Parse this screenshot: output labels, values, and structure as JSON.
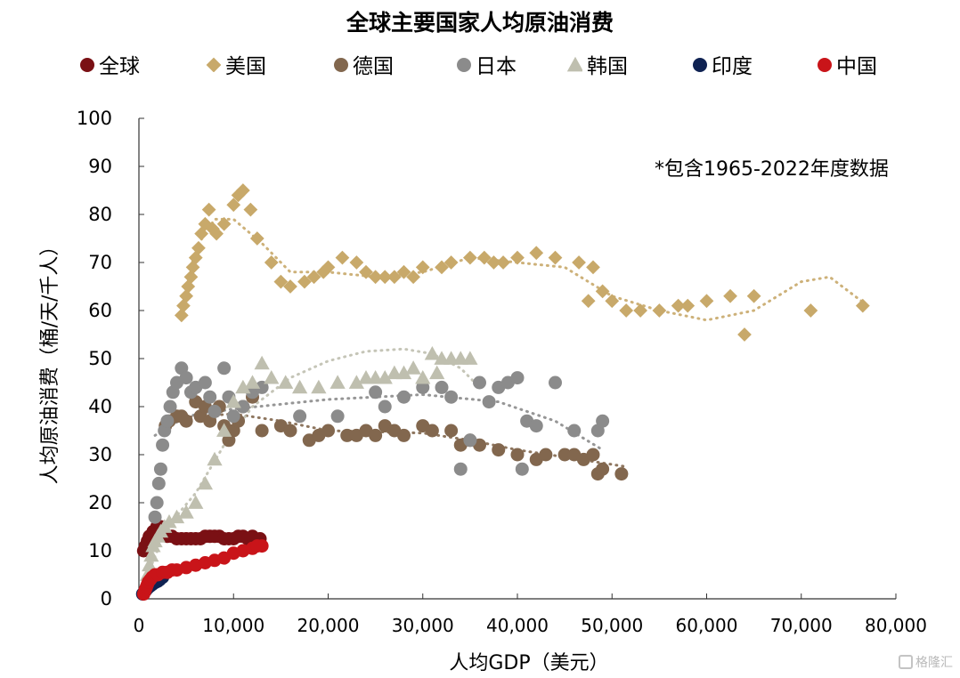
{
  "chart_data": {
    "type": "scatter",
    "title": "全球主要国家人均原油消费",
    "note": "*包含1965-2022年度数据",
    "xlabel": "人均GDP（美元）",
    "ylabel": "人均原油消费（桶/天/千人）",
    "xlim": [
      0,
      80000
    ],
    "ylim": [
      0,
      100
    ],
    "x_ticks": [
      "0",
      "10,000",
      "20,000",
      "30,000",
      "40,000",
      "50,000",
      "60,000",
      "70,000",
      "80,000"
    ],
    "y_ticks": [
      "0",
      "10",
      "20",
      "30",
      "40",
      "50",
      "60",
      "70",
      "80",
      "90",
      "100"
    ],
    "grid": false,
    "legend_position": "top",
    "series": [
      {
        "name": "全球",
        "color": "#7a1014",
        "marker": "circle",
        "points": [
          [
            500,
            10
          ],
          [
            700,
            11
          ],
          [
            900,
            12
          ],
          [
            1100,
            13
          ],
          [
            1300,
            13
          ],
          [
            1500,
            14
          ],
          [
            1700,
            14
          ],
          [
            1900,
            15
          ],
          [
            2100,
            14
          ],
          [
            2300,
            15
          ],
          [
            2600,
            14
          ],
          [
            3000,
            13
          ],
          [
            3500,
            13
          ],
          [
            4000,
            12.5
          ],
          [
            4500,
            12.5
          ],
          [
            5000,
            12.5
          ],
          [
            5500,
            12.5
          ],
          [
            6000,
            12.5
          ],
          [
            6500,
            12.5
          ],
          [
            7000,
            13
          ],
          [
            7500,
            13
          ],
          [
            8000,
            13
          ],
          [
            8500,
            13
          ],
          [
            9000,
            12.5
          ],
          [
            9500,
            12.5
          ],
          [
            10000,
            12.5
          ],
          [
            10500,
            13
          ],
          [
            11000,
            13
          ],
          [
            11500,
            12.5
          ],
          [
            12000,
            13
          ],
          [
            12800,
            12.5
          ]
        ],
        "trend": [
          [
            500,
            10
          ],
          [
            2000,
            13
          ],
          [
            5000,
            12.5
          ],
          [
            12800,
            12.5
          ]
        ]
      },
      {
        "name": "美国",
        "color": "#c8a96a",
        "marker": "diamond",
        "points": [
          [
            4500,
            59
          ],
          [
            4700,
            61
          ],
          [
            5000,
            63
          ],
          [
            5200,
            65
          ],
          [
            5500,
            67
          ],
          [
            5700,
            69
          ],
          [
            6000,
            71
          ],
          [
            6300,
            73
          ],
          [
            6600,
            76
          ],
          [
            7000,
            78
          ],
          [
            7400,
            81
          ],
          [
            7800,
            77
          ],
          [
            8200,
            76
          ],
          [
            9000,
            78
          ],
          [
            10000,
            82
          ],
          [
            10500,
            84
          ],
          [
            11000,
            85
          ],
          [
            11800,
            81
          ],
          [
            12500,
            75
          ],
          [
            14000,
            70
          ],
          [
            15000,
            66
          ],
          [
            16000,
            65
          ],
          [
            17500,
            66
          ],
          [
            18500,
            67
          ],
          [
            19500,
            68
          ],
          [
            20000,
            69
          ],
          [
            21500,
            71
          ],
          [
            23000,
            70
          ],
          [
            24000,
            68
          ],
          [
            25000,
            67
          ],
          [
            26000,
            67
          ],
          [
            27000,
            67
          ],
          [
            28000,
            68
          ],
          [
            29000,
            67
          ],
          [
            30000,
            69
          ],
          [
            32000,
            69
          ],
          [
            33000,
            70
          ],
          [
            35000,
            71
          ],
          [
            36500,
            71
          ],
          [
            37500,
            70
          ],
          [
            38500,
            70
          ],
          [
            40000,
            71
          ],
          [
            42000,
            72
          ],
          [
            44000,
            71
          ],
          [
            46500,
            70
          ],
          [
            47500,
            62
          ],
          [
            48000,
            69
          ],
          [
            49000,
            64
          ],
          [
            50000,
            62
          ],
          [
            51500,
            60
          ],
          [
            53000,
            60
          ],
          [
            55000,
            60
          ],
          [
            57000,
            61
          ],
          [
            58000,
            61
          ],
          [
            60000,
            62
          ],
          [
            62500,
            63
          ],
          [
            64000,
            55
          ],
          [
            65000,
            63
          ],
          [
            71000,
            60
          ],
          [
            76500,
            61
          ]
        ],
        "trend": [
          [
            4500,
            60
          ],
          [
            6000,
            73
          ],
          [
            8000,
            79
          ],
          [
            10000,
            79
          ],
          [
            13000,
            74
          ],
          [
            16000,
            68
          ],
          [
            20000,
            68
          ],
          [
            25000,
            67
          ],
          [
            30000,
            68
          ],
          [
            35000,
            71
          ],
          [
            40000,
            70
          ],
          [
            45000,
            69
          ],
          [
            50000,
            63
          ],
          [
            55000,
            60
          ],
          [
            60000,
            58
          ],
          [
            65000,
            60
          ],
          [
            70000,
            66
          ],
          [
            73000,
            67
          ],
          [
            77000,
            61
          ]
        ]
      },
      {
        "name": "德国",
        "color": "#82674e",
        "marker": "circle",
        "points": [
          [
            2800,
            36
          ],
          [
            3200,
            37
          ],
          [
            4000,
            38
          ],
          [
            4500,
            38
          ],
          [
            5000,
            37
          ],
          [
            6000,
            41
          ],
          [
            6500,
            38
          ],
          [
            7000,
            40
          ],
          [
            7500,
            37
          ],
          [
            8000,
            39
          ],
          [
            8500,
            40
          ],
          [
            9000,
            36
          ],
          [
            9500,
            33
          ],
          [
            10000,
            35
          ],
          [
            10500,
            37
          ],
          [
            11000,
            40
          ],
          [
            12000,
            42
          ],
          [
            13000,
            35
          ],
          [
            15000,
            36
          ],
          [
            16000,
            35
          ],
          [
            18000,
            33
          ],
          [
            19000,
            34
          ],
          [
            20000,
            35
          ],
          [
            22000,
            34
          ],
          [
            23000,
            34
          ],
          [
            24000,
            35
          ],
          [
            25000,
            34
          ],
          [
            26000,
            36
          ],
          [
            27000,
            35
          ],
          [
            28000,
            34
          ],
          [
            30000,
            36
          ],
          [
            31000,
            35
          ],
          [
            33000,
            35
          ],
          [
            34000,
            32
          ],
          [
            35000,
            33
          ],
          [
            36000,
            32
          ],
          [
            38000,
            31
          ],
          [
            40000,
            30
          ],
          [
            42000,
            29
          ],
          [
            43000,
            30
          ],
          [
            45000,
            30
          ],
          [
            46000,
            30
          ],
          [
            47000,
            29
          ],
          [
            48000,
            30
          ],
          [
            48500,
            26
          ],
          [
            49000,
            27
          ],
          [
            51000,
            26
          ]
        ],
        "trend": [
          [
            2800,
            37.5
          ],
          [
            10000,
            38.5
          ],
          [
            15000,
            37
          ],
          [
            20000,
            35
          ],
          [
            30000,
            34.5
          ],
          [
            35000,
            33
          ],
          [
            40000,
            31
          ],
          [
            45000,
            29.5
          ],
          [
            51500,
            27.5
          ]
        ]
      },
      {
        "name": "日本",
        "color": "#8b8b8b",
        "marker": "circle",
        "points": [
          [
            1700,
            17
          ],
          [
            1900,
            20
          ],
          [
            2100,
            24
          ],
          [
            2300,
            27
          ],
          [
            2500,
            32
          ],
          [
            2700,
            35
          ],
          [
            3000,
            37
          ],
          [
            3300,
            40
          ],
          [
            3600,
            43
          ],
          [
            4000,
            45
          ],
          [
            4500,
            48
          ],
          [
            5000,
            46
          ],
          [
            5500,
            43
          ],
          [
            6000,
            44
          ],
          [
            7000,
            45
          ],
          [
            7500,
            42
          ],
          [
            8000,
            39
          ],
          [
            9000,
            48
          ],
          [
            9500,
            42
          ],
          [
            10000,
            38
          ],
          [
            11000,
            40
          ],
          [
            12000,
            43
          ],
          [
            13000,
            44
          ],
          [
            17000,
            38
          ],
          [
            21000,
            38
          ],
          [
            25000,
            43
          ],
          [
            26000,
            40
          ],
          [
            28000,
            42
          ],
          [
            30000,
            44
          ],
          [
            32000,
            44
          ],
          [
            33000,
            42
          ],
          [
            34000,
            27
          ],
          [
            35000,
            33
          ],
          [
            36000,
            45
          ],
          [
            37000,
            41
          ],
          [
            38000,
            44
          ],
          [
            39000,
            45
          ],
          [
            40000,
            46
          ],
          [
            41000,
            37
          ],
          [
            42000,
            36
          ],
          [
            44000,
            45
          ],
          [
            46000,
            35
          ],
          [
            48500,
            35
          ],
          [
            49000,
            37
          ],
          [
            40500,
            27
          ]
        ],
        "trend": [
          [
            1700,
            34
          ],
          [
            5000,
            38
          ],
          [
            10000,
            39.5
          ],
          [
            20000,
            41.5
          ],
          [
            30000,
            42.5
          ],
          [
            38000,
            41
          ],
          [
            44000,
            37
          ],
          [
            49000,
            31
          ]
        ]
      },
      {
        "name": "韩国",
        "color": "#bfbfaf",
        "marker": "triangle",
        "points": [
          [
            900,
            5
          ],
          [
            1100,
            7
          ],
          [
            1300,
            9
          ],
          [
            1500,
            11
          ],
          [
            1700,
            12
          ],
          [
            2000,
            13
          ],
          [
            2300,
            14
          ],
          [
            2700,
            15
          ],
          [
            3200,
            16
          ],
          [
            4000,
            17
          ],
          [
            5000,
            18
          ],
          [
            6000,
            20
          ],
          [
            7000,
            24
          ],
          [
            8000,
            29
          ],
          [
            9000,
            35
          ],
          [
            10000,
            41
          ],
          [
            11000,
            44
          ],
          [
            12000,
            45
          ],
          [
            13000,
            49
          ],
          [
            14000,
            46
          ],
          [
            15500,
            45
          ],
          [
            17000,
            44
          ],
          [
            19000,
            44
          ],
          [
            21000,
            45
          ],
          [
            23000,
            45
          ],
          [
            24000,
            46
          ],
          [
            25000,
            46
          ],
          [
            26000,
            46
          ],
          [
            27000,
            47
          ],
          [
            28000,
            47
          ],
          [
            29000,
            48
          ],
          [
            30000,
            46
          ],
          [
            31000,
            51
          ],
          [
            32000,
            50
          ],
          [
            33000,
            50
          ],
          [
            34000,
            50
          ],
          [
            35000,
            50
          ],
          [
            31500,
            47
          ]
        ],
        "trend": [
          [
            900,
            5
          ],
          [
            3000,
            15
          ],
          [
            6000,
            22
          ],
          [
            9000,
            32
          ],
          [
            12000,
            40
          ],
          [
            16000,
            46
          ],
          [
            20000,
            49.5
          ],
          [
            24000,
            51.5
          ],
          [
            28000,
            52
          ],
          [
            31000,
            51
          ],
          [
            34000,
            48
          ],
          [
            36000,
            44
          ]
        ]
      },
      {
        "name": "印度",
        "color": "#0f2252",
        "marker": "circle",
        "points": [
          [
            400,
            1
          ],
          [
            500,
            1.2
          ],
          [
            600,
            1.5
          ],
          [
            700,
            1.7
          ],
          [
            800,
            2
          ],
          [
            900,
            2.2
          ],
          [
            1000,
            2.4
          ],
          [
            1200,
            2.7
          ],
          [
            1400,
            3
          ],
          [
            1600,
            3.3
          ],
          [
            1800,
            3.5
          ],
          [
            2000,
            3.7
          ],
          [
            2200,
            4
          ],
          [
            2500,
            4.5
          ]
        ],
        "trend": []
      },
      {
        "name": "中国",
        "color": "#c91419",
        "marker": "circle",
        "points": [
          [
            500,
            1
          ],
          [
            600,
            1.5
          ],
          [
            700,
            2
          ],
          [
            800,
            2.5
          ],
          [
            900,
            3
          ],
          [
            1000,
            3.5
          ],
          [
            1200,
            4
          ],
          [
            1400,
            4.5
          ],
          [
            1700,
            5
          ],
          [
            2000,
            5
          ],
          [
            2500,
            5.5
          ],
          [
            3000,
            5.5
          ],
          [
            3500,
            6
          ],
          [
            4000,
            6
          ],
          [
            5000,
            6.5
          ],
          [
            6000,
            7
          ],
          [
            7000,
            7.5
          ],
          [
            8000,
            8
          ],
          [
            9000,
            8.5
          ],
          [
            10000,
            9.5
          ],
          [
            11000,
            10
          ],
          [
            12000,
            10.5
          ],
          [
            13000,
            11
          ],
          [
            12500,
            11
          ]
        ],
        "trend": []
      }
    ]
  },
  "watermark": {
    "text": "格隆汇"
  }
}
